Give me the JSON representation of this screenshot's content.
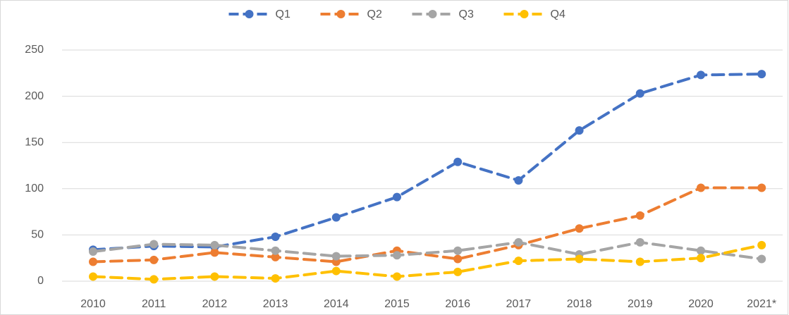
{
  "chart_data": {
    "type": "line",
    "categories": [
      "2010",
      "2011",
      "2012",
      "2013",
      "2014",
      "2015",
      "2016",
      "2017",
      "2018",
      "2019",
      "2020",
      "2021*"
    ],
    "series": [
      {
        "name": "Q1",
        "color": "#4472c4",
        "values": [
          34,
          38,
          37,
          48,
          69,
          91,
          129,
          109,
          163,
          203,
          223,
          224
        ]
      },
      {
        "name": "Q2",
        "color": "#ed7d31",
        "values": [
          21,
          23,
          31,
          26,
          21,
          33,
          24,
          39,
          57,
          71,
          101,
          101
        ]
      },
      {
        "name": "Q3",
        "color": "#a5a5a5",
        "values": [
          32,
          40,
          39,
          33,
          27,
          28,
          33,
          42,
          29,
          42,
          33,
          24
        ]
      },
      {
        "name": "Q4",
        "color": "#ffc000",
        "values": [
          5,
          2,
          5,
          3,
          11,
          5,
          10,
          22,
          24,
          21,
          25,
          39
        ]
      }
    ],
    "ylim": [
      0,
      250
    ],
    "yticks": [
      0,
      50,
      100,
      150,
      200,
      250
    ],
    "grid": true,
    "legend": "top"
  }
}
